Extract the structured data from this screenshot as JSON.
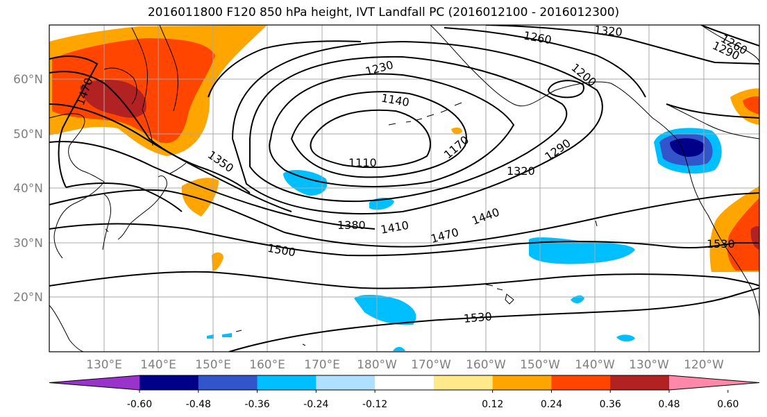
{
  "title": "2016011800 F120 850 hPa height, IVT Landfall PC (2016012100 - 2016012300)",
  "lat_labels": [
    "60°N",
    "50°N",
    "40°N",
    "30°N",
    "20°N"
  ],
  "lon_labels": [
    "130°E",
    "140°E",
    "150°E",
    "160°E",
    "170°E",
    "180°W",
    "170°W",
    "160°W",
    "150°W",
    "140°W",
    "130°W",
    "120°W"
  ],
  "contour_labels": [
    "1470",
    "1350",
    "1230",
    "1140",
    "1110",
    "1170",
    "1260",
    "1320",
    "1200",
    "1290",
    "1320",
    "1440",
    "1410",
    "1380",
    "1470",
    "1500",
    "1530",
    "1530",
    "1260",
    "1290"
  ],
  "colorbar": {
    "ticks": [
      "-0.60",
      "-0.48",
      "-0.36",
      "-0.24",
      "-0.12",
      "0.12",
      "0.24",
      "0.36",
      "0.48",
      "0.60"
    ],
    "colors": [
      "#9933cc",
      "#000088",
      "#3355cc",
      "#00bfff",
      "#b0e0ff",
      "#ffffff",
      "#ffe98a",
      "#ffa500",
      "#ff4500",
      "#b22222",
      "#ff88aa"
    ]
  }
}
